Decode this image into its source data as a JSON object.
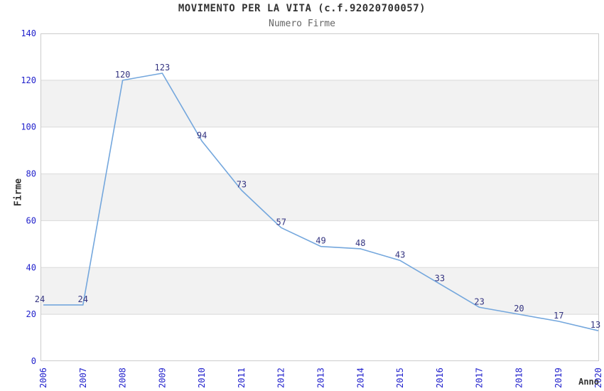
{
  "chart_data": {
    "type": "line",
    "title": "MOVIMENTO PER LA VITA (c.f.92020700057)",
    "subtitle": "Numero Firme",
    "xlabel": "Anno",
    "ylabel": "Firme",
    "categories": [
      "2006",
      "2007",
      "2008",
      "2009",
      "2010",
      "2011",
      "2012",
      "2013",
      "2014",
      "2015",
      "2016",
      "2017",
      "2018",
      "2019",
      "2020"
    ],
    "values": [
      24,
      24,
      120,
      123,
      94,
      73,
      57,
      49,
      48,
      43,
      33,
      23,
      20,
      17,
      13
    ],
    "yticks": [
      0,
      20,
      40,
      60,
      80,
      100,
      120,
      140
    ],
    "ylim": [
      0,
      140
    ],
    "grid": "horizontal-only",
    "bands": [
      [
        120,
        100
      ],
      [
        80,
        60
      ],
      [
        40,
        20
      ]
    ],
    "legend": "none",
    "colors": {
      "line": "#74a7dd",
      "data_label": "#333380",
      "tick_label": "#2222cc",
      "axis_title": "#333333",
      "title": "#333333",
      "subtitle": "#666666",
      "band": "#f2f2f2",
      "gridline": "#d9d9d9",
      "plot_border": "#cccccc",
      "background": "#ffffff"
    }
  }
}
